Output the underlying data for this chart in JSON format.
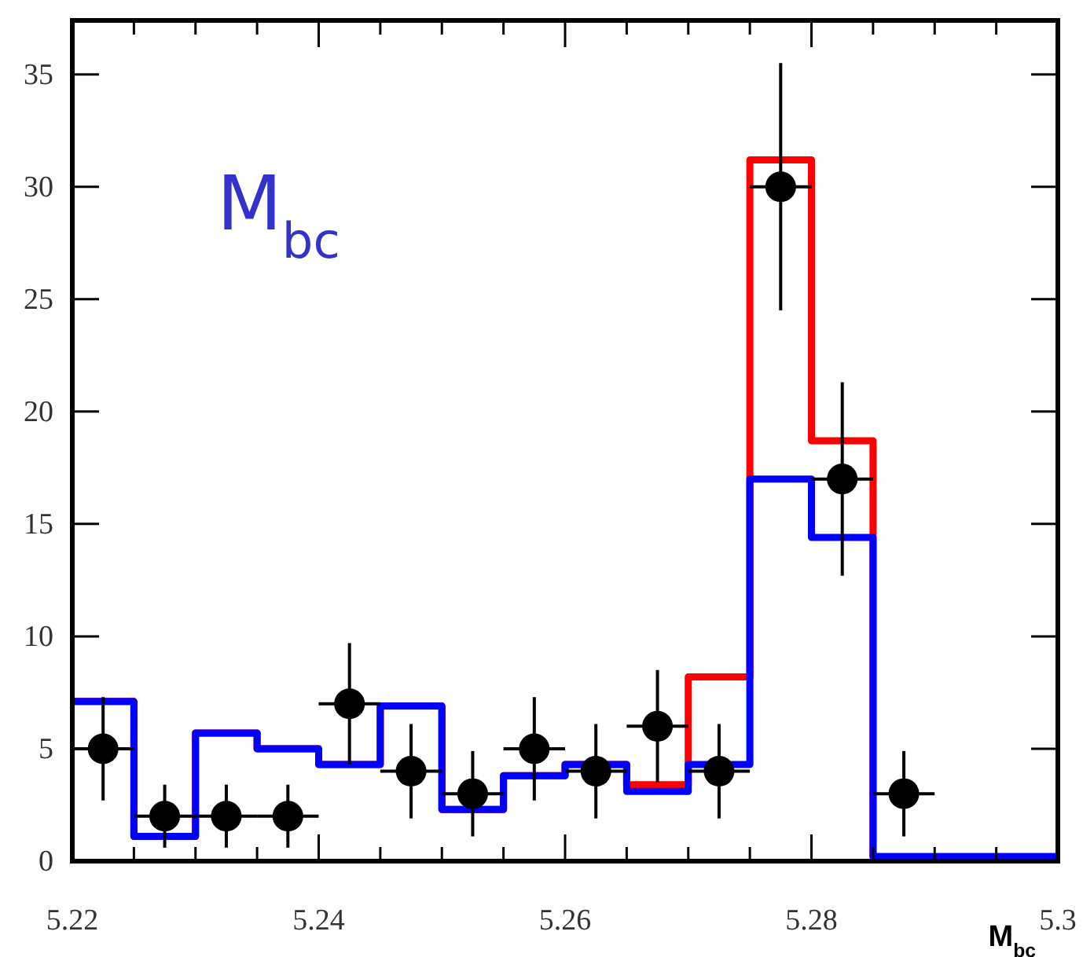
{
  "chart_data": {
    "type": "histogram",
    "xlabel": "M$_{bc}$",
    "annotations": [
      "M$_{bc}$"
    ],
    "bins": [
      5.22,
      5.225,
      5.23,
      5.235,
      5.24,
      5.245,
      5.25,
      5.255,
      5.26,
      5.265,
      5.27,
      5.275,
      5.28,
      5.285,
      5.29,
      5.295,
      5.3
    ],
    "xlim": [
      5.22,
      5.3
    ],
    "ylim": [
      0,
      37.4
    ],
    "xticks": [
      5.22,
      5.24,
      5.26,
      5.28,
      5.3
    ],
    "yticks": [
      0,
      5,
      10,
      15,
      20,
      25,
      30,
      35
    ],
    "grid": false,
    "series": [
      {
        "color": "#ff0000",
        "values": [
          7.1,
          1.1,
          5.7,
          5.0,
          4.3,
          6.9,
          2.3,
          3.8,
          4.3,
          3.4,
          8.2,
          31.2,
          18.7,
          0.2,
          0.2,
          0.2
        ]
      },
      {
        "color": "#0000ff",
        "values": [
          7.1,
          1.1,
          5.7,
          5.0,
          4.3,
          6.9,
          2.3,
          3.8,
          4.3,
          3.1,
          4.3,
          17.0,
          14.4,
          0.2,
          0.2,
          0.2
        ]
      },
      {
        "type": "scatter",
        "color": "#000000",
        "marker": "circle",
        "x": [
          5.2225,
          5.2275,
          5.2325,
          5.2375,
          5.2425,
          5.2475,
          5.2525,
          5.2575,
          5.2625,
          5.2675,
          5.2725,
          5.2775,
          5.2825,
          5.2875
        ],
        "values": [
          5,
          2,
          2,
          2,
          7,
          4,
          3,
          5,
          4,
          6,
          4,
          30,
          17,
          3
        ],
        "errors": [
          2.3,
          1.4,
          1.4,
          1.4,
          2.7,
          2.1,
          1.9,
          2.3,
          2.1,
          2.5,
          2.1,
          5.5,
          4.3,
          1.9
        ],
        "xerrors": [
          0.0025,
          0.0025,
          0.0025,
          0.0025,
          0.0025,
          0.0025,
          0.0025,
          0.0025,
          0.0025,
          0.0025,
          0.0025,
          0.0025,
          0.0025,
          0.0025
        ]
      }
    ]
  }
}
